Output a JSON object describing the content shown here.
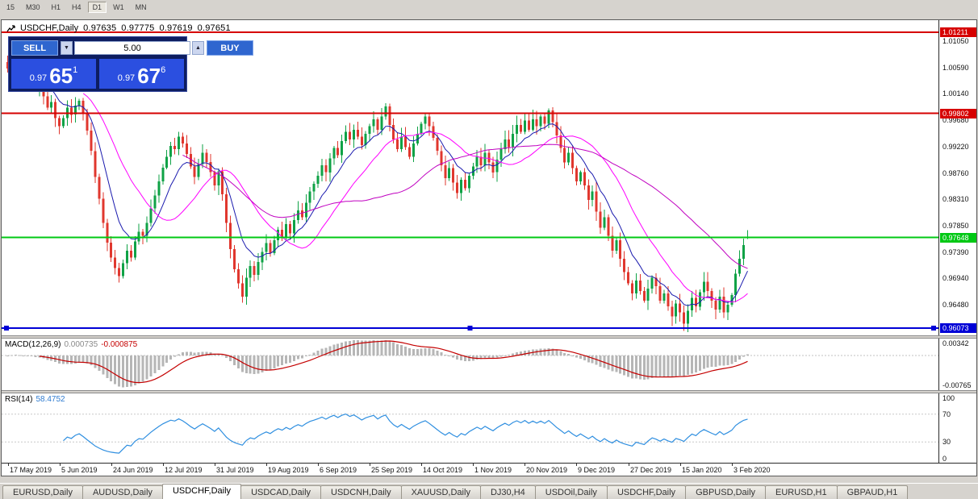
{
  "toolbar": {
    "timeframes": [
      "15",
      "M30",
      "H1",
      "H4",
      "D1",
      "W1",
      "MN"
    ],
    "active": "D1"
  },
  "chart_header": {
    "symbol": "USDCHF,Daily",
    "open": "0.97635",
    "high": "0.97775",
    "low": "0.97619",
    "close": "0.97651"
  },
  "trade_panel": {
    "sell_label": "SELL",
    "buy_label": "BUY",
    "volume": "5.00",
    "sell_price_small": "0.97",
    "sell_price_big": "65",
    "sell_price_sup": "1",
    "buy_price_small": "0.97",
    "buy_price_big": "67",
    "buy_price_sup": "6"
  },
  "price_axis": {
    "ticks": [
      {
        "text": "1.01050",
        "value": 1.0105
      },
      {
        "text": "1.00590",
        "value": 1.0059
      },
      {
        "text": "1.00140",
        "value": 1.0014
      },
      {
        "text": "0.99680",
        "value": 0.9968
      },
      {
        "text": "0.99220",
        "value": 0.9922
      },
      {
        "text": "0.98760",
        "value": 0.9876
      },
      {
        "text": "0.98310",
        "value": 0.9831
      },
      {
        "text": "0.97850",
        "value": 0.9785
      },
      {
        "text": "0.97390",
        "value": 0.9739
      },
      {
        "text": "0.96940",
        "value": 0.9694
      },
      {
        "text": "0.96480",
        "value": 0.9648
      }
    ]
  },
  "macd": {
    "name": "MACD(12,26,9)",
    "value_main": "0.000735",
    "value_signal": "-0.000875",
    "axis_labels": [
      {
        "text": "0.00342",
        "value": 0.00342
      },
      {
        "text": "-0.00765",
        "value": -0.00765
      }
    ]
  },
  "rsi": {
    "name": "RSI(14)",
    "value": "58.4752",
    "axis_labels": [
      {
        "text": "100",
        "value": 100
      },
      {
        "text": "70",
        "value": 70
      },
      {
        "text": "30",
        "value": 30
      },
      {
        "text": "0",
        "value": 0
      }
    ],
    "levels": [
      70,
      30
    ]
  },
  "dates": [
    {
      "label": "17 May 2019",
      "candle": 0
    },
    {
      "label": "5 Jun 2019",
      "candle": 13
    },
    {
      "label": "24 Jun 2019",
      "candle": 26
    },
    {
      "label": "12 Jul 2019",
      "candle": 39
    },
    {
      "label": "31 Jul 2019",
      "candle": 52
    },
    {
      "label": "19 Aug 2019",
      "candle": 65
    },
    {
      "label": "6 Sep 2019",
      "candle": 78
    },
    {
      "label": "25 Sep 2019",
      "candle": 91
    },
    {
      "label": "14 Oct 2019",
      "candle": 104
    },
    {
      "label": "1 Nov 2019",
      "candle": 117
    },
    {
      "label": "20 Nov 2019",
      "candle": 130
    },
    {
      "label": "9 Dec 2019",
      "candle": 143
    },
    {
      "label": "27 Dec 2019",
      "candle": 156
    },
    {
      "label": "15 Jan 2020",
      "candle": 169
    },
    {
      "label": "3 Feb 2020",
      "candle": 182
    }
  ],
  "tabs": {
    "items": [
      "EURUSD,Daily",
      "AUDUSD,Daily",
      "USDCHF,Daily",
      "USDCAD,Daily",
      "USDCNH,Daily",
      "XAUUSD,Daily",
      "DJ30,H4",
      "USDOil,Daily",
      "USDCHF,Daily",
      "GBPUSD,Daily",
      "EURUSD,H1",
      "GBPAUD,H1"
    ],
    "active_index": 2
  },
  "chart_data": {
    "type": "candlestick",
    "title": "USDCHF,Daily",
    "main_range": {
      "max": 1.0142,
      "min": 0.9595
    },
    "closes": [
      1.0058,
      1.0066,
      1.0078,
      1.0055,
      1.0042,
      1.0057,
      1.0035,
      1.0022,
      1.0038,
      1.001,
      0.999,
      1.0,
      0.9972,
      0.9958,
      0.9972,
      0.999,
      0.9978,
      0.9994,
      1.0002,
      0.998,
      0.995,
      0.9915,
      0.987,
      0.9832,
      0.979,
      0.9756,
      0.973,
      0.9712,
      0.9698,
      0.972,
      0.9742,
      0.973,
      0.9758,
      0.9775,
      0.9768,
      0.979,
      0.9815,
      0.9838,
      0.9862,
      0.9886,
      0.9905,
      0.9924,
      0.9918,
      0.994,
      0.9928,
      0.991,
      0.9888,
      0.987,
      0.9892,
      0.9912,
      0.9896,
      0.9878,
      0.9855,
      0.988,
      0.984,
      0.979,
      0.9745,
      0.971,
      0.9685,
      0.9662,
      0.9695,
      0.9715,
      0.97,
      0.9722,
      0.974,
      0.9755,
      0.9738,
      0.976,
      0.9778,
      0.9765,
      0.9788,
      0.9772,
      0.9795,
      0.9812,
      0.98,
      0.9825,
      0.9845,
      0.9858,
      0.9872,
      0.989,
      0.9878,
      0.9902,
      0.992,
      0.9908,
      0.9932,
      0.9948,
      0.9935,
      0.9952,
      0.994,
      0.9925,
      0.9945,
      0.9958,
      0.997,
      0.9952,
      0.9975,
      0.9992,
      0.996,
      0.9935,
      0.9918,
      0.994,
      0.9922,
      0.9905,
      0.9928,
      0.9945,
      0.9962,
      0.9975,
      0.9958,
      0.9938,
      0.9915,
      0.989,
      0.9868,
      0.9885,
      0.986,
      0.9842,
      0.9865,
      0.985,
      0.9872,
      0.9888,
      0.9905,
      0.989,
      0.9912,
      0.9895,
      0.9878,
      0.99,
      0.9918,
      0.9935,
      0.9922,
      0.9945,
      0.996,
      0.9948,
      0.9968,
      0.9952,
      0.997,
      0.9958,
      0.9975,
      0.9962,
      0.9985,
      0.9965,
      0.9942,
      0.992,
      0.9895,
      0.9912,
      0.9885,
      0.9862,
      0.9878,
      0.9855,
      0.983,
      0.9845,
      0.981,
      0.9782,
      0.98,
      0.9768,
      0.9742,
      0.976,
      0.9728,
      0.9705,
      0.9685,
      0.9668,
      0.969,
      0.9672,
      0.9655,
      0.9676,
      0.9695,
      0.968,
      0.9655,
      0.9668,
      0.9645,
      0.9628,
      0.965,
      0.9635,
      0.9615,
      0.9638,
      0.966,
      0.9645,
      0.967,
      0.9688,
      0.9672,
      0.9655,
      0.964,
      0.9662,
      0.9635,
      0.9648,
      0.9665,
      0.9702,
      0.9728,
      0.9752,
      0.97651
    ],
    "last_candle": {
      "open": 0.97635,
      "high": 0.97775,
      "low": 0.97619,
      "close": 0.97651
    },
    "hlines": [
      {
        "price": "1.01211",
        "value": 1.01211,
        "color": "#d60000"
      },
      {
        "price": "0.99802",
        "value": 0.99802,
        "color": "#d60000"
      },
      {
        "price": "0.97648",
        "value": 0.97648,
        "color": "#00c814"
      },
      {
        "price": "0.96073",
        "value": 0.96073,
        "color": "#0000d6",
        "selected": true
      }
    ],
    "overlays": [
      {
        "type": "ema",
        "period": 9,
        "color": "#1a1aae"
      },
      {
        "type": "sma",
        "period": 20,
        "color": "#ff00ff"
      },
      {
        "type": "sma",
        "period": 45,
        "color": "#c000c0"
      }
    ],
    "macd_params": {
      "fast": 12,
      "slow": 26,
      "signal": 9,
      "range": {
        "max": 0.0044,
        "min": -0.009
      }
    },
    "rsi_params": {
      "period": 14
    },
    "colors": {
      "up": "#0fa246",
      "down": "#e0372e",
      "macd_hist": "#b6b6b6",
      "macd_signal": "#c40000",
      "rsi_line": "#2f8fe0",
      "level_dash": "#c8c8c8"
    }
  }
}
